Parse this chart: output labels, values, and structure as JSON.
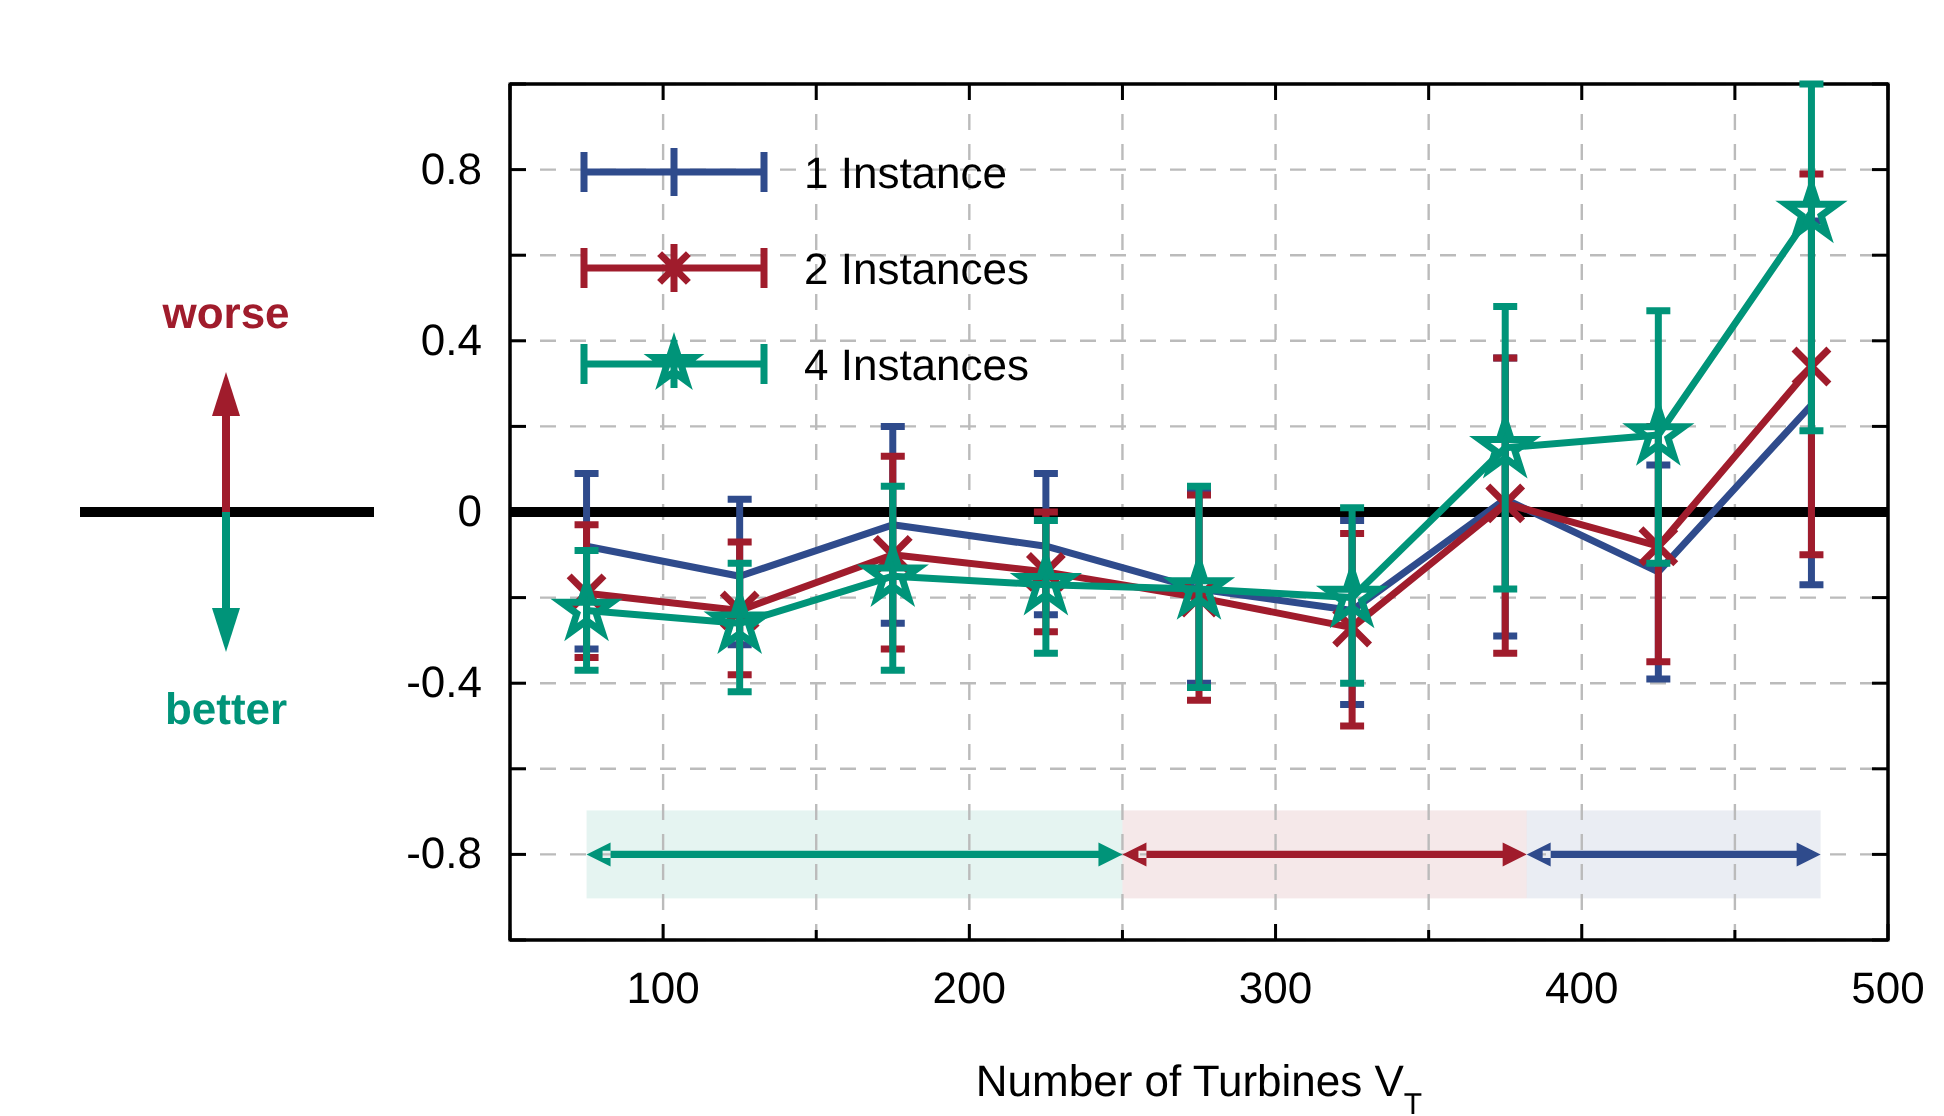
{
  "chart_data": {
    "type": "line",
    "xlabel": "Number of Turbines V$_{T}$",
    "x": [
      75,
      125,
      175,
      225,
      275,
      325,
      375,
      425,
      475
    ],
    "xlim": [
      50,
      500
    ],
    "xticks": [
      {
        "value": 50,
        "label": null
      },
      100,
      {
        "value": 150,
        "label": null
      },
      200,
      {
        "value": 250,
        "label": null
      },
      300,
      {
        "value": 350,
        "label": null
      },
      400,
      {
        "value": 450,
        "label": null
      },
      500
    ],
    "ylim": [
      -1,
      1
    ],
    "yticks": [
      {
        "value": -1,
        "label": null
      },
      -0.8,
      {
        "value": -0.6,
        "label": null
      },
      -0.4,
      {
        "value": -0.2,
        "label": null
      },
      0,
      {
        "value": 0.2,
        "label": null
      },
      0.4,
      {
        "value": 0.6,
        "label": null
      },
      0.8,
      {
        "value": 1,
        "label": null
      }
    ],
    "grid": true,
    "legend": "top left",
    "line_style": "solid",
    "series": [
      {
        "name": "1 Instance",
        "color": "#2f4b8c",
        "marker": "none",
        "values": [
          -0.08,
          -0.15,
          -0.03,
          -0.08,
          -0.18,
          -0.23,
          0.03,
          -0.14,
          0.25
        ],
        "errors": [
          [
            -0.32,
            0.09
          ],
          [
            -0.31,
            0.03
          ],
          [
            -0.26,
            0.2
          ],
          [
            -0.24,
            0.09
          ],
          [
            -0.4,
            0.05
          ],
          [
            -0.45,
            -0.02
          ],
          [
            -0.29,
            0.36
          ],
          [
            -0.39,
            0.11
          ],
          [
            -0.17,
            0.68
          ]
        ]
      },
      {
        "name": "2 Instances",
        "color": "#a01c2c",
        "marker": "cross",
        "values": [
          -0.19,
          -0.23,
          -0.1,
          -0.14,
          -0.2,
          -0.27,
          0.02,
          -0.08,
          0.34
        ],
        "errors": [
          [
            -0.34,
            -0.03
          ],
          [
            -0.38,
            -0.07
          ],
          [
            -0.32,
            0.13
          ],
          [
            -0.28,
            0.0
          ],
          [
            -0.44,
            0.04
          ],
          [
            -0.5,
            -0.05
          ],
          [
            -0.33,
            0.36
          ],
          [
            -0.35,
            0.2
          ],
          [
            -0.1,
            0.79
          ]
        ]
      },
      {
        "name": "4 Instances",
        "color": "#009479",
        "marker": "star",
        "values": [
          -0.23,
          -0.26,
          -0.15,
          -0.17,
          -0.18,
          -0.2,
          0.15,
          0.18,
          0.7
        ],
        "errors": [
          [
            -0.37,
            -0.09
          ],
          [
            -0.42,
            -0.12
          ],
          [
            -0.37,
            0.06
          ],
          [
            -0.33,
            -0.02
          ],
          [
            -0.41,
            0.06
          ],
          [
            -0.4,
            0.01
          ],
          [
            -0.18,
            0.48
          ],
          [
            -0.12,
            0.47
          ],
          [
            0.19,
            1.0
          ]
        ]
      }
    ],
    "ref_lines": [
      {
        "axis": "y",
        "value": 0,
        "color": "#000000"
      }
    ],
    "bands": [
      {
        "axis": "x",
        "from": 75,
        "to": 250,
        "color": "#009479"
      },
      {
        "axis": "x",
        "from": 250,
        "to": 382,
        "color": "#a01c2c"
      },
      {
        "axis": "x",
        "from": 382,
        "to": 478,
        "color": "#2f4b8c"
      }
    ],
    "annotations": [
      "worse",
      "better"
    ]
  }
}
